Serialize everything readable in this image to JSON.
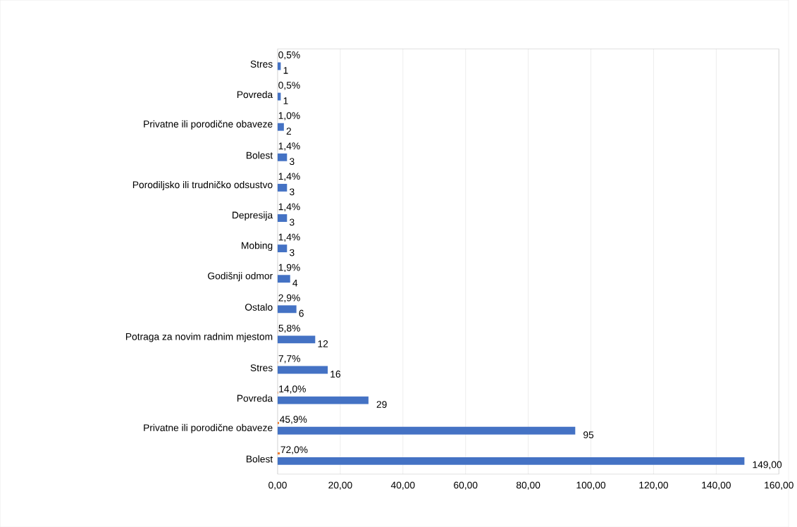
{
  "chart_data": {
    "type": "bar",
    "orientation": "horizontal",
    "categories": [
      "Stres",
      "Povreda",
      "Privatne ili porodične obaveze",
      "Bolest",
      "Porodiljsko ili trudničko odsustvo",
      "Depresija",
      "Mobing",
      "Godišnji odmor",
      "Ostalo",
      "Potraga za novim radnim mjestom",
      "Stres",
      "Povreda",
      "Privatne ili porodične obaveze",
      "Bolest"
    ],
    "series": [
      {
        "color": "#4472c4",
        "values": [
          1,
          1,
          2,
          3,
          3,
          3,
          3,
          4,
          6,
          12,
          16,
          29,
          95,
          149
        ],
        "value_labels": [
          "1",
          "1",
          "2",
          "3",
          "3",
          "3",
          "3",
          "4",
          "6",
          "12",
          "16",
          "29",
          "95",
          "149,00"
        ]
      },
      {
        "color": "#ed7d31",
        "values": [
          0.005,
          0.005,
          0.01,
          0.014,
          0.014,
          0.014,
          0.014,
          0.019,
          0.029,
          0.058,
          0.077,
          0.14,
          0.459,
          0.72
        ],
        "value_labels": [
          "0,5%",
          "0,5%",
          "1,0%",
          "1,4%",
          "1,4%",
          "1,4%",
          "1,4%",
          "1,9%",
          "2,9%",
          "5,8%",
          "7,7%",
          "14,0%",
          "45,9%",
          "72,0%"
        ]
      }
    ],
    "xlim": [
      0,
      160
    ],
    "xticks": [
      {
        "value": 0,
        "label": "0,00"
      },
      {
        "value": 20,
        "label": "20,00"
      },
      {
        "value": 40,
        "label": "40,00"
      },
      {
        "value": 60,
        "label": "60,00"
      },
      {
        "value": 80,
        "label": "80,00"
      },
      {
        "value": 100,
        "label": "100,00"
      },
      {
        "value": 120,
        "label": "120,00"
      },
      {
        "value": 140,
        "label": "140,00"
      },
      {
        "value": 160,
        "label": "160,00"
      }
    ],
    "grid": "x"
  }
}
